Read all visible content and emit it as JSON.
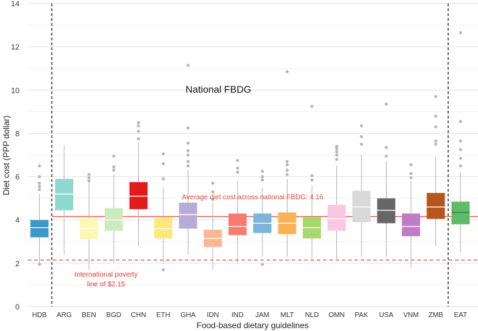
{
  "chart_data": {
    "type": "box",
    "title": "",
    "xlabel": "Food-based dietary guidelines",
    "ylabel": "Diet cost (PPP dollar)",
    "ylim": [
      0,
      14
    ],
    "yticks": [
      0,
      2,
      4,
      6,
      8,
      10,
      12,
      14
    ],
    "grid": true,
    "categories": [
      "HDB",
      "ARG",
      "BEN",
      "BGD",
      "CHN",
      "ETH",
      "GHA",
      "IDN",
      "IND",
      "JAM",
      "MLT",
      "NLD",
      "OMN",
      "PAK",
      "USA",
      "VNM",
      "ZMB",
      "EAT"
    ],
    "boxes": [
      {
        "label": "HDB",
        "color": "#3d97c9",
        "median_color": "#ffffff",
        "whislo": 1.95,
        "q1": 3.2,
        "med": 3.65,
        "q3": 4.0,
        "whishi": 5.2,
        "fliers": [
          1.95,
          5.4,
          5.55,
          5.7,
          6.0,
          6.5
        ]
      },
      {
        "label": "ARG",
        "color": "#8ed8cf",
        "median_color": "#ffffff",
        "whislo": 2.4,
        "q1": 4.45,
        "med": 5.2,
        "q3": 5.9,
        "whishi": 7.45,
        "fliers": []
      },
      {
        "label": "BEN",
        "color": "#fdf6b4",
        "median_color": "#ffffff",
        "whislo": 1.7,
        "q1": 3.1,
        "med": 3.6,
        "q3": 4.1,
        "whishi": 5.7,
        "fliers": [
          5.8,
          5.95,
          6.1
        ]
      },
      {
        "label": "BGD",
        "color": "#cdeabf",
        "median_color": "#ffffff",
        "whislo": 2.0,
        "q1": 3.5,
        "med": 4.0,
        "q3": 4.55,
        "whishi": 6.1,
        "fliers": [
          6.3,
          6.45,
          6.95
        ]
      },
      {
        "label": "CHN",
        "color": "#e31a1c",
        "median_color": "#ffffff",
        "whislo": 2.8,
        "q1": 4.5,
        "med": 5.1,
        "q3": 5.75,
        "whishi": 7.6,
        "fliers": [
          7.75,
          8.1,
          8.35,
          8.5
        ]
      },
      {
        "label": "ETH",
        "color": "#fde879",
        "median_color": "#ffffff",
        "whislo": 2.0,
        "q1": 3.15,
        "med": 3.6,
        "q3": 4.1,
        "whishi": 5.5,
        "fliers": [
          1.7,
          5.9,
          6.6,
          7.05
        ]
      },
      {
        "label": "GHA",
        "color": "#b7acd6",
        "median_color": "#ffffff",
        "whislo": 2.4,
        "q1": 3.6,
        "med": 4.25,
        "q3": 4.8,
        "whishi": 6.3,
        "fliers": [
          6.5,
          6.7,
          7.0,
          7.2,
          7.55,
          8.25,
          11.15
        ]
      },
      {
        "label": "IDN",
        "color": "#fbb795",
        "median_color": "#ffffff",
        "whislo": 1.7,
        "q1": 2.75,
        "med": 3.15,
        "q3": 3.55,
        "whishi": 4.8,
        "fliers": [
          4.95,
          5.3,
          5.7
        ]
      },
      {
        "label": "IND",
        "color": "#f87a70",
        "median_color": "#ffffff",
        "whislo": 2.0,
        "q1": 3.3,
        "med": 3.7,
        "q3": 4.3,
        "whishi": 5.8,
        "fliers": [
          6.2,
          6.4,
          6.75
        ]
      },
      {
        "label": "JAM",
        "color": "#7eb3da",
        "median_color": "#ffffff",
        "whislo": 2.3,
        "q1": 3.4,
        "med": 3.85,
        "q3": 4.3,
        "whishi": 5.5,
        "fliers": [
          1.95,
          5.85,
          6.0,
          6.25
        ]
      },
      {
        "label": "MLT",
        "color": "#fbb157",
        "median_color": "#ffffff",
        "whislo": 2.3,
        "q1": 3.35,
        "med": 3.85,
        "q3": 4.35,
        "whishi": 5.9,
        "fliers": [
          6.1,
          6.3,
          6.55,
          6.7,
          10.85
        ]
      },
      {
        "label": "NLD",
        "color": "#a8d86f",
        "median_color": "#ffffff",
        "whislo": 2.2,
        "q1": 3.15,
        "med": 3.65,
        "q3": 4.15,
        "whishi": 5.6,
        "fliers": [
          5.85,
          6.05,
          9.25
        ]
      },
      {
        "label": "OMN",
        "color": "#fcc7e1",
        "median_color": "#ffffff",
        "whislo": 2.2,
        "q1": 3.5,
        "med": 4.05,
        "q3": 4.7,
        "whishi": 6.5,
        "fliers": [
          6.8,
          7.0,
          7.15,
          7.3,
          7.4
        ]
      },
      {
        "label": "PAK",
        "color": "#d9d9d9",
        "median_color": "#ffffff",
        "whislo": 2.3,
        "q1": 3.9,
        "med": 4.6,
        "q3": 5.35,
        "whishi": 7.0,
        "fliers": [
          7.5,
          7.85,
          8.35
        ]
      },
      {
        "label": "USA",
        "color": "#666666",
        "median_color": "#ffffff",
        "whislo": 2.3,
        "q1": 3.85,
        "med": 4.45,
        "q3": 5.0,
        "whishi": 6.7,
        "fliers": [
          6.95,
          7.35,
          9.35
        ]
      },
      {
        "label": "VNM",
        "color": "#c07cc6",
        "median_color": "#ffffff",
        "whislo": 1.8,
        "q1": 3.25,
        "med": 3.7,
        "q3": 4.3,
        "whishi": 5.8,
        "fliers": [
          5.95,
          6.15,
          6.55
        ]
      },
      {
        "label": "ZMB",
        "color": "#b5561c",
        "median_color": "#ffffff",
        "whislo": 2.8,
        "q1": 4.05,
        "med": 4.6,
        "q3": 5.25,
        "whishi": 6.9,
        "fliers": [
          7.5,
          7.65,
          8.3,
          8.8,
          9.7
        ]
      },
      {
        "label": "EAT",
        "color": "#5fbb6a",
        "median_color": "#2d7d39",
        "whislo": 2.5,
        "q1": 3.8,
        "med": 4.35,
        "q3": 4.85,
        "whishi": 6.2,
        "fliers": [
          6.5,
          6.85,
          7.25,
          7.65,
          8.55,
          12.65
        ]
      }
    ],
    "reference_lines": {
      "average_value": 4.16,
      "average_label": "Average diet cost across national FBDG: 4.16",
      "average_color": "#e84e3a",
      "poverty_value": 2.15,
      "poverty_label_line1": "International poverty",
      "poverty_label_line2": "line of $2.15",
      "poverty_color": "#e53935"
    },
    "group_label": "National FBDG",
    "separators_between": [
      [
        "HDB",
        "ARG"
      ],
      [
        "ZMB",
        "EAT"
      ]
    ],
    "outlier_color": "#b5b5b5",
    "whisker_color": "#b5b5b5"
  }
}
